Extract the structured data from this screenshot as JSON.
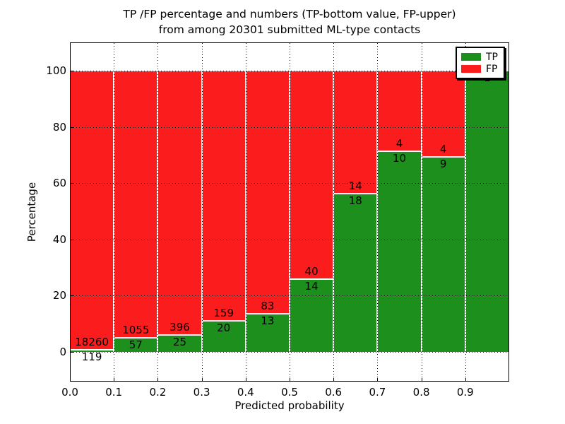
{
  "figure": {
    "title_line1": "TP /FP percentage and numbers (TP-bottom value, FP-upper)",
    "title_line2": "from among 20301 submitted ML-type contacts"
  },
  "axes": {
    "xlabel": "Predicted probability",
    "ylabel": "Percentage",
    "ytick_labels": [
      "0",
      "20",
      "40",
      "60",
      "80",
      "100"
    ],
    "xtick_labels": [
      "0.0",
      "0.1",
      "0.2",
      "0.3",
      "0.4",
      "0.5",
      "0.6",
      "0.7",
      "0.8",
      "0.9"
    ]
  },
  "legend": {
    "position": "upper right",
    "entries": [
      {
        "label": "TP",
        "color": "#1d8f1d"
      },
      {
        "label": "FP",
        "color": "#fb1d1d"
      }
    ]
  },
  "colors": {
    "tp": "#1d8f1d",
    "fp": "#fb1d1d",
    "grid": "#000000",
    "frame": "#000000",
    "background": "#ffffff",
    "bar_edge": "#ffffff"
  },
  "chart_data": {
    "type": "bar",
    "variant": "stacked-percentage-histogram",
    "title": "TP /FP percentage and numbers (TP-bottom value, FP-upper) from among 20301 submitted ML-type contacts",
    "xlabel": "Predicted probability",
    "ylabel": "Percentage",
    "total_submitted": 20301,
    "xlim": [
      0.0,
      1.0
    ],
    "ylim": [
      -10,
      110
    ],
    "yticks": [
      0,
      20,
      40,
      60,
      80,
      100
    ],
    "xticks": [
      0.0,
      0.1,
      0.2,
      0.3,
      0.4,
      0.5,
      0.6,
      0.7,
      0.8,
      0.9
    ],
    "grid": true,
    "legend_position": "upper right",
    "bin_edges": [
      0.0,
      0.1,
      0.2,
      0.3,
      0.4,
      0.5,
      0.6,
      0.7,
      0.8,
      0.9,
      1.0
    ],
    "series": [
      {
        "name": "TP",
        "counts": [
          119,
          57,
          25,
          20,
          13,
          14,
          18,
          10,
          9,
          1
        ]
      },
      {
        "name": "FP",
        "counts": [
          18260,
          1055,
          396,
          159,
          83,
          40,
          14,
          4,
          4,
          0
        ]
      }
    ],
    "tp_percent": [
      0.65,
      5.13,
      5.94,
      11.17,
      13.54,
      25.93,
      56.25,
      71.43,
      69.23,
      100.0
    ],
    "bar_labels": {
      "fp": [
        "18260",
        "1055",
        "396",
        "159",
        "83",
        "40",
        "14",
        "4",
        "4",
        ""
      ],
      "tp": [
        "119",
        "57",
        "25",
        "20",
        "13",
        "14",
        "18",
        "10",
        "9",
        "1"
      ]
    }
  }
}
